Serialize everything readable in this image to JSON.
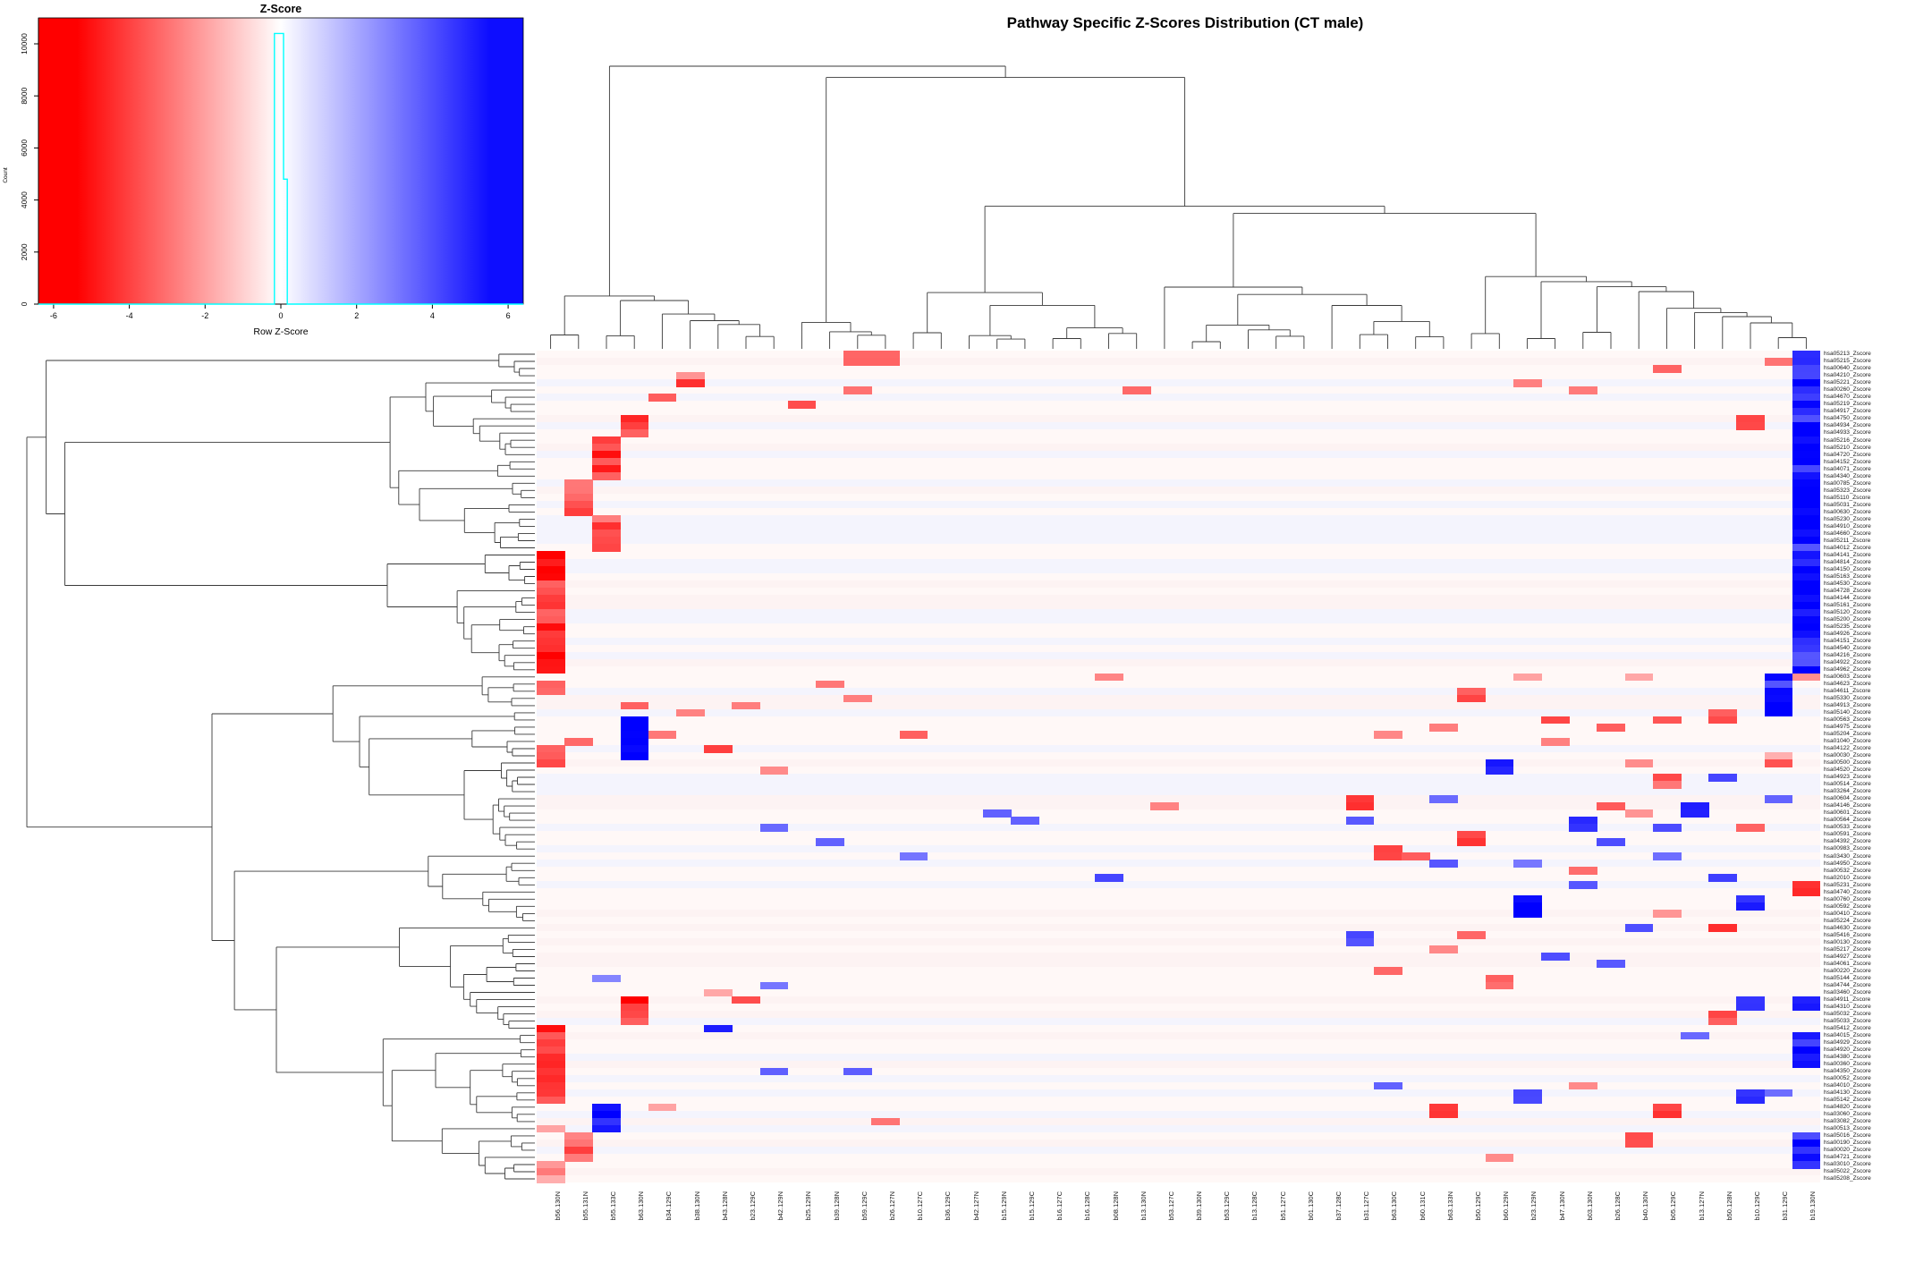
{
  "figure": {
    "title": "Pathway Specific Z-Scores Distribution (CT male)"
  },
  "color_key": {
    "title": "Z-Score",
    "xlabel": "Row Z-Score",
    "ylabel": "Count",
    "x_ticks": [
      -6,
      -4,
      -2,
      0,
      2,
      4,
      6
    ],
    "y_ticks": [
      0,
      2000,
      4000,
      6000,
      8000,
      10000
    ],
    "zlim": [
      -6.4,
      6.4
    ],
    "count_max": 11000,
    "gradient_left": "#ff0000",
    "gradient_mid": "#ffffff",
    "gradient_right": "#0d0dff",
    "histogram_color": "#00ffff",
    "histogram_points": [
      [
        -6.4,
        0
      ],
      [
        -0.17,
        0
      ],
      [
        -0.17,
        10400
      ],
      [
        0.07,
        10400
      ],
      [
        0.07,
        4800
      ],
      [
        0.17,
        4800
      ],
      [
        0.17,
        0
      ],
      [
        6.4,
        0
      ]
    ]
  },
  "chart_data": {
    "type": "heatmap",
    "title": "Pathway Specific Z-Scores Distribution (CT male)",
    "zlim": [
      -6,
      6
    ],
    "colorscale": {
      "negative": "red",
      "zero": "white",
      "positive": "blue"
    },
    "legend_position": "top-left",
    "rows": [
      "hsa05213_Zscore",
      "hsa05215_Zscore",
      "hsa00640_Zscore",
      "hsa04210_Zscore",
      "hsa05221_Zscore",
      "hsa00260_Zscore",
      "hsa04670_Zscore",
      "hsa05219_Zscore",
      "hsa04917_Zscore",
      "hsa04750_Zscore",
      "hsa04934_Zscore",
      "hsa04933_Zscore",
      "hsa05216_Zscore",
      "hsa05210_Zscore",
      "hsa04720_Zscore",
      "hsa04152_Zscore",
      "hsa04071_Zscore",
      "hsa04340_Zscore",
      "hsa00785_Zscore",
      "hsa05323_Zscore",
      "hsa05110_Zscore",
      "hsa05031_Zscore",
      "hsa00630_Zscore",
      "hsa05230_Zscore",
      "hsa04910_Zscore",
      "hsa04660_Zscore",
      "hsa05211_Zscore",
      "hsa04012_Zscore",
      "hsa04141_Zscore",
      "hsa04814_Zscore",
      "hsa04150_Zscore",
      "hsa05163_Zscore",
      "hsa04530_Zscore",
      "hsa04728_Zscore",
      "hsa04144_Zscore",
      "hsa05161_Zscore",
      "hsa05120_Zscore",
      "hsa05200_Zscore",
      "hsa05235_Zscore",
      "hsa04926_Zscore",
      "hsa04151_Zscore",
      "hsa04540_Zscore",
      "hsa04216_Zscore",
      "hsa04922_Zscore",
      "hsa04962_Zscore",
      "hsa00603_Zscore",
      "hsa04623_Zscore",
      "hsa04611_Zscore",
      "hsa05330_Zscore",
      "hsa04913_Zscore",
      "hsa05140_Zscore",
      "hsa00563_Zscore",
      "hsa04975_Zscore",
      "hsa05204_Zscore",
      "hsa01040_Zscore",
      "hsa04122_Zscore",
      "hsa00030_Zscore",
      "hsa00500_Zscore",
      "hsa04520_Zscore",
      "hsa04923_Zscore",
      "hsa00514_Zscore",
      "hsa03264_Zscore",
      "hsa00604_Zscore",
      "hsa04146_Zscore",
      "hsa00601_Zscore",
      "hsa00564_Zscore",
      "hsa00533_Zscore",
      "hsa00591_Zscore",
      "hsa04392_Zscore",
      "hsa00983_Zscore",
      "hsa03430_Zscore",
      "hsa04950_Zscore",
      "hsa00532_Zscore",
      "hsa02010_Zscore",
      "hsa05231_Zscore",
      "hsa04740_Zscore",
      "hsa00760_Zscore",
      "hsa00592_Zscore",
      "hsa00410_Zscore",
      "hsa05224_Zscore",
      "hsa04630_Zscore",
      "hsa05416_Zscore",
      "hsa00130_Zscore",
      "hsa05217_Zscore",
      "hsa04927_Zscore",
      "hsa04061_Zscore",
      "hsa00220_Zscore",
      "hsa05144_Zscore",
      "hsa04744_Zscore",
      "hsa03460_Zscore",
      "hsa04911_Zscore",
      "hsa04310_Zscore",
      "hsa05032_Zscore",
      "hsa05033_Zscore",
      "hsa05412_Zscore",
      "hsa04015_Zscore",
      "hsa04929_Zscore",
      "hsa04920_Zscore",
      "hsa04380_Zscore",
      "hsa00360_Zscore",
      "hsa04350_Zscore",
      "hsa00052_Zscore",
      "hsa04010_Zscore",
      "hsa04130_Zscore",
      "hsa05142_Zscore",
      "hsa04820_Zscore",
      "hsa03060_Zscore",
      "hsa03082_Zscore",
      "hsa00513_Zscore",
      "hsa05016_Zscore",
      "hsa00190_Zscore",
      "hsa00020_Zscore",
      "hsa04721_Zscore",
      "hsa03010_Zscore",
      "hsa05022_Zscore",
      "hsa05208_Zscore"
    ],
    "columns": [
      "b56.130N",
      "b55.131N",
      "b55.133C",
      "b63.130N",
      "b34.129C",
      "b38.130N",
      "b43.128N",
      "b23.129C",
      "b42.129N",
      "b25.129N",
      "b39.128N",
      "b59.129C",
      "b26.127N",
      "b10.127C",
      "b36.129C",
      "b42.127N",
      "b15.129N",
      "b15.129C",
      "b16.127C",
      "b16.128C",
      "b08.128N",
      "b13.130N",
      "b53.127C",
      "b39.130N",
      "b53.129C",
      "b13.128C",
      "b51.127C",
      "b01.130C",
      "b37.128C",
      "b31.127C",
      "b63.130C",
      "b60.131C",
      "b63.133N",
      "b50.129C",
      "b60.129N",
      "b23.129N",
      "b47.130N",
      "b03.130N",
      "b26.128C",
      "b40.130N",
      "b05.129C",
      "b13.127N",
      "b50.128N",
      "b10.129C",
      "b31.129C",
      "b19.130N"
    ],
    "cells_format": [
      "row",
      "col",
      "rowspan",
      "colspan",
      "z"
    ],
    "cells": [
      [
        1,
        12,
        2,
        2,
        -4
      ],
      [
        2,
        45,
        1,
        1,
        -3
      ],
      [
        3,
        41,
        1,
        1,
        -3.5
      ],
      [
        4,
        6,
        1,
        1,
        -2.5
      ],
      [
        5,
        6,
        1,
        1,
        -5
      ],
      [
        5,
        36,
        1,
        1,
        -3
      ],
      [
        6,
        12,
        1,
        1,
        -3.5
      ],
      [
        6,
        22,
        1,
        1,
        -3.5
      ],
      [
        6,
        38,
        1,
        1,
        -3
      ],
      [
        7,
        5,
        1,
        1,
        -4
      ],
      [
        8,
        10,
        1,
        1,
        -4.5
      ],
      [
        10,
        4,
        3,
        1,
        -4.5
      ],
      [
        10,
        44,
        2,
        1,
        -4.5
      ],
      [
        13,
        3,
        6,
        1,
        -4.5
      ],
      [
        19,
        2,
        5,
        1,
        -4
      ],
      [
        24,
        3,
        5,
        1,
        -4
      ],
      [
        29,
        1,
        17,
        1,
        -5
      ],
      [
        1,
        46,
        45,
        1,
        5.5
      ],
      [
        46,
        46,
        1,
        1,
        -2.5
      ],
      [
        46,
        45,
        6,
        1,
        5.5
      ],
      [
        46,
        21,
        1,
        1,
        -3
      ],
      [
        46,
        36,
        1,
        1,
        -2
      ],
      [
        46,
        40,
        1,
        1,
        -2
      ],
      [
        47,
        1,
        2,
        1,
        -3.5
      ],
      [
        47,
        11,
        1,
        1,
        -3
      ],
      [
        48,
        34,
        2,
        1,
        -4
      ],
      [
        49,
        12,
        1,
        1,
        -3
      ],
      [
        50,
        8,
        1,
        1,
        -3
      ],
      [
        50,
        4,
        1,
        1,
        -4
      ],
      [
        51,
        6,
        1,
        1,
        -3
      ],
      [
        51,
        43,
        2,
        1,
        -4
      ],
      [
        52,
        4,
        6,
        1,
        5.5
      ],
      [
        52,
        37,
        1,
        1,
        -4
      ],
      [
        52,
        41,
        1,
        1,
        -4
      ],
      [
        53,
        39,
        1,
        1,
        -4
      ],
      [
        53,
        33,
        1,
        1,
        -3
      ],
      [
        54,
        5,
        1,
        1,
        -3
      ],
      [
        54,
        14,
        1,
        1,
        -3.5
      ],
      [
        54,
        31,
        1,
        1,
        -3
      ],
      [
        55,
        2,
        1,
        1,
        -3.5
      ],
      [
        55,
        37,
        1,
        1,
        -3
      ],
      [
        56,
        7,
        1,
        1,
        -4.5
      ],
      [
        56,
        1,
        3,
        1,
        -4.5
      ],
      [
        58,
        35,
        2,
        1,
        5.5
      ],
      [
        58,
        40,
        1,
        1,
        -3
      ],
      [
        57,
        45,
        1,
        1,
        -2
      ],
      [
        58,
        45,
        1,
        1,
        -4.5
      ],
      [
        59,
        9,
        1,
        1,
        -3
      ],
      [
        60,
        41,
        1,
        1,
        -4
      ],
      [
        60,
        43,
        1,
        1,
        4
      ],
      [
        61,
        41,
        1,
        1,
        -3.5
      ],
      [
        63,
        30,
        2,
        1,
        -5
      ],
      [
        63,
        33,
        1,
        1,
        3.5
      ],
      [
        63,
        45,
        1,
        1,
        3.5
      ],
      [
        64,
        23,
        1,
        1,
        -3
      ],
      [
        64,
        39,
        1,
        1,
        -4
      ],
      [
        64,
        42,
        2,
        1,
        5
      ],
      [
        65,
        17,
        1,
        1,
        3.5
      ],
      [
        65,
        40,
        1,
        1,
        -2.5
      ],
      [
        66,
        18,
        1,
        1,
        3.5
      ],
      [
        66,
        30,
        1,
        1,
        4
      ],
      [
        66,
        38,
        2,
        1,
        5
      ],
      [
        67,
        9,
        1,
        1,
        3.5
      ],
      [
        67,
        41,
        1,
        1,
        4
      ],
      [
        67,
        44,
        1,
        1,
        -4
      ],
      [
        68,
        34,
        2,
        1,
        -4.5
      ],
      [
        69,
        11,
        1,
        1,
        3.5
      ],
      [
        69,
        39,
        1,
        1,
        4
      ],
      [
        70,
        31,
        2,
        1,
        -4.5
      ],
      [
        71,
        14,
        1,
        1,
        3
      ],
      [
        71,
        32,
        1,
        1,
        -4
      ],
      [
        71,
        41,
        1,
        1,
        3.5
      ],
      [
        72,
        33,
        1,
        1,
        4
      ],
      [
        72,
        36,
        1,
        1,
        3
      ],
      [
        73,
        38,
        1,
        1,
        -3.5
      ],
      [
        74,
        21,
        1,
        1,
        4
      ],
      [
        74,
        43,
        1,
        1,
        4.5
      ],
      [
        75,
        38,
        1,
        1,
        4
      ],
      [
        75,
        46,
        2,
        1,
        -5
      ],
      [
        77,
        44,
        2,
        1,
        5
      ],
      [
        77,
        36,
        3,
        1,
        5.5
      ],
      [
        79,
        41,
        1,
        1,
        -2.5
      ],
      [
        81,
        43,
        1,
        1,
        -5
      ],
      [
        81,
        40,
        1,
        1,
        4
      ],
      [
        82,
        30,
        2,
        1,
        4
      ],
      [
        82,
        34,
        1,
        1,
        -3.5
      ],
      [
        84,
        33,
        1,
        1,
        -3
      ],
      [
        85,
        37,
        1,
        1,
        4
      ],
      [
        86,
        39,
        1,
        1,
        4
      ],
      [
        87,
        31,
        1,
        1,
        -3.5
      ],
      [
        88,
        35,
        2,
        1,
        -3.5
      ],
      [
        88,
        3,
        1,
        1,
        3
      ],
      [
        89,
        9,
        1,
        1,
        3.5
      ],
      [
        90,
        7,
        1,
        1,
        -2
      ],
      [
        91,
        8,
        1,
        1,
        -4
      ],
      [
        91,
        4,
        4,
        1,
        -5
      ],
      [
        91,
        46,
        2,
        1,
        5
      ],
      [
        91,
        44,
        2,
        1,
        4.5
      ],
      [
        93,
        43,
        2,
        1,
        -4
      ],
      [
        95,
        1,
        11,
        1,
        -4.5
      ],
      [
        95,
        7,
        1,
        1,
        5
      ],
      [
        96,
        46,
        5,
        1,
        5.5
      ],
      [
        96,
        42,
        1,
        1,
        3.5
      ],
      [
        101,
        9,
        1,
        1,
        3.5
      ],
      [
        101,
        12,
        1,
        1,
        3.5
      ],
      [
        103,
        31,
        1,
        1,
        4
      ],
      [
        103,
        38,
        1,
        1,
        -3
      ],
      [
        104,
        44,
        2,
        1,
        5
      ],
      [
        104,
        45,
        1,
        1,
        3.5
      ],
      [
        104,
        36,
        2,
        1,
        4
      ],
      [
        106,
        3,
        4,
        1,
        5.5
      ],
      [
        106,
        5,
        1,
        1,
        -2
      ],
      [
        106,
        33,
        2,
        1,
        -4.5
      ],
      [
        106,
        41,
        2,
        1,
        -4.5
      ],
      [
        108,
        13,
        1,
        1,
        -3
      ],
      [
        109,
        1,
        1,
        1,
        -2
      ],
      [
        110,
        2,
        4,
        1,
        -4
      ],
      [
        110,
        46,
        5,
        1,
        5.5
      ],
      [
        110,
        40,
        2,
        1,
        -4
      ],
      [
        113,
        35,
        1,
        1,
        -3
      ],
      [
        114,
        1,
        3,
        1,
        -2.5
      ]
    ]
  }
}
